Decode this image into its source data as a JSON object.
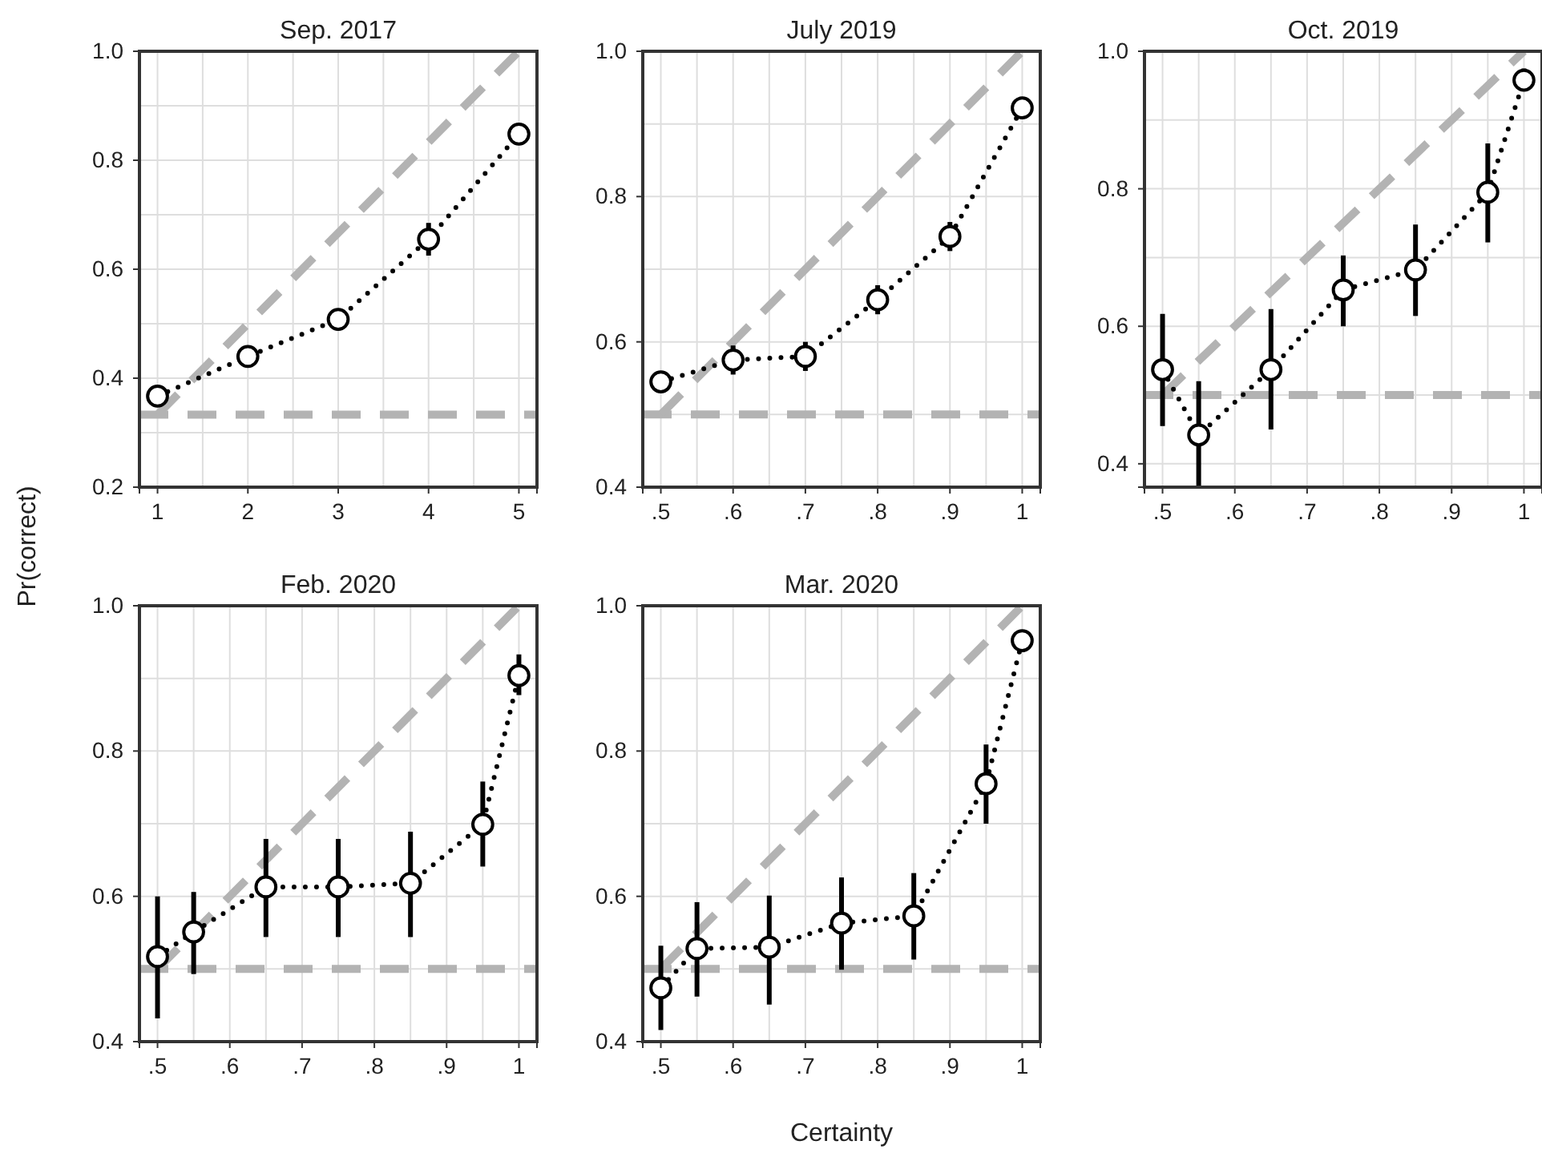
{
  "chart_data": [
    {
      "type": "line",
      "title": "Sep. 2017",
      "ylabel": "Pr(correct)",
      "xlim": [
        0.8,
        5.2
      ],
      "xticks": [
        1,
        2,
        3,
        4,
        5
      ],
      "ylim": [
        0.2,
        1.0
      ],
      "yticks": [
        {
          "value": 0.2,
          "label": "0.2"
        },
        {
          "value": 0.4,
          "label": "0.4"
        },
        {
          "value": 0.6,
          "label": "0.6"
        },
        {
          "value": 0.8,
          "label": "0.8"
        },
        {
          "value": 1,
          "label": "1.0"
        }
      ],
      "grid": true,
      "series": [
        {
          "type": "line",
          "color": "#b3b3b3",
          "line_style": "dashed",
          "marker": "none",
          "x": [
            1,
            5
          ],
          "values": [
            0.333,
            1
          ]
        },
        {
          "type": "line",
          "color": "#000000",
          "line_style": "dotted",
          "marker": "circle",
          "x": [
            1,
            2,
            3,
            4,
            5
          ],
          "values": [
            0.367,
            0.44,
            0.508,
            0.655,
            0.848
          ],
          "errors": [
            0.02,
            0.02,
            0.02,
            0.03,
            0.02
          ]
        }
      ],
      "ref_lines": [
        {
          "axis": "y",
          "value": 0.333,
          "color": "#b3b3b3",
          "line_style": "dashed"
        }
      ]
    },
    {
      "type": "line",
      "title": "July 2019",
      "xlim": [
        0.475,
        1.025
      ],
      "xticks": [
        {
          "value": 0.5,
          "label": ".5"
        },
        {
          "value": 0.6,
          "label": ".6"
        },
        {
          "value": 0.7,
          "label": ".7"
        },
        {
          "value": 0.8,
          "label": ".8"
        },
        {
          "value": 0.9,
          "label": ".9"
        },
        {
          "value": 1,
          "label": "1"
        }
      ],
      "ylim": [
        0.4,
        1.0
      ],
      "yticks": [
        {
          "value": 0.4,
          "label": "0.4"
        },
        {
          "value": 0.6,
          "label": "0.6"
        },
        {
          "value": 0.8,
          "label": "0.8"
        },
        {
          "value": 1,
          "label": "1.0"
        }
      ],
      "grid": true,
      "series": [
        {
          "type": "line",
          "color": "#b3b3b3",
          "line_style": "dashed",
          "marker": "none",
          "x": [
            0.5,
            1
          ],
          "values": [
            0.5,
            1
          ]
        },
        {
          "type": "line",
          "color": "#000000",
          "line_style": "dotted",
          "marker": "circle",
          "x": [
            0.5,
            0.6,
            0.7,
            0.8,
            0.9,
            1
          ],
          "values": [
            0.545,
            0.575,
            0.58,
            0.658,
            0.745,
            0.922
          ],
          "errors": [
            0.015,
            0.02,
            0.02,
            0.02,
            0.02,
            0.01
          ]
        }
      ],
      "ref_lines": [
        {
          "axis": "y",
          "value": 0.5,
          "color": "#b3b3b3",
          "line_style": "dashed"
        }
      ]
    },
    {
      "type": "line",
      "title": "Oct. 2019",
      "xlim": [
        0.475,
        1.025
      ],
      "xticks": [
        {
          "value": 0.5,
          "label": ".5"
        },
        {
          "value": 0.6,
          "label": ".6"
        },
        {
          "value": 0.7,
          "label": ".7"
        },
        {
          "value": 0.8,
          "label": ".8"
        },
        {
          "value": 0.9,
          "label": ".9"
        },
        {
          "value": 1,
          "label": "1"
        }
      ],
      "ylim": [
        0.366,
        1.0
      ],
      "yticks": [
        {
          "value": 0.4,
          "label": "0.4"
        },
        {
          "value": 0.6,
          "label": "0.6"
        },
        {
          "value": 0.8,
          "label": "0.8"
        },
        {
          "value": 1,
          "label": "1.0"
        }
      ],
      "grid": true,
      "series": [
        {
          "type": "line",
          "color": "#b3b3b3",
          "line_style": "dashed",
          "marker": "none",
          "x": [
            0.5,
            1
          ],
          "values": [
            0.5,
            1
          ]
        },
        {
          "type": "line",
          "color": "#000000",
          "line_style": "dotted",
          "marker": "circle",
          "x": [
            0.5,
            0.55,
            0.65,
            0.75,
            0.85,
            0.95,
            1
          ],
          "values": [
            0.537,
            0.442,
            0.537,
            0.653,
            0.682,
            0.795,
            0.958
          ],
          "errors": [
            [
              0.455,
              0.618
            ],
            [
              0.366,
              0.52
            ],
            [
              0.45,
              0.625
            ],
            [
              0.6,
              0.703
            ],
            [
              0.615,
              0.748
            ],
            [
              0.722,
              0.866
            ],
            [
              0.945,
              0.975
            ]
          ]
        }
      ],
      "ref_lines": [
        {
          "axis": "y",
          "value": 0.5,
          "color": "#b3b3b3",
          "line_style": "dashed"
        }
      ]
    },
    {
      "type": "line",
      "title": "Feb. 2020",
      "xlim": [
        0.475,
        1.025
      ],
      "xticks": [
        {
          "value": 0.5,
          "label": ".5"
        },
        {
          "value": 0.6,
          "label": ".6"
        },
        {
          "value": 0.7,
          "label": ".7"
        },
        {
          "value": 0.8,
          "label": ".8"
        },
        {
          "value": 0.9,
          "label": ".9"
        },
        {
          "value": 1,
          "label": "1"
        }
      ],
      "ylim": [
        0.4,
        1.0
      ],
      "yticks": [
        {
          "value": 0.4,
          "label": "0.4"
        },
        {
          "value": 0.6,
          "label": "0.6"
        },
        {
          "value": 0.8,
          "label": "0.8"
        },
        {
          "value": 1,
          "label": "1.0"
        }
      ],
      "grid": true,
      "series": [
        {
          "type": "line",
          "color": "#b3b3b3",
          "line_style": "dashed",
          "marker": "none",
          "x": [
            0.5,
            1
          ],
          "values": [
            0.5,
            1
          ]
        },
        {
          "type": "line",
          "color": "#000000",
          "line_style": "dotted",
          "marker": "circle",
          "x": [
            0.5,
            0.55,
            0.65,
            0.75,
            0.85,
            0.95,
            1
          ],
          "values": [
            0.517,
            0.551,
            0.613,
            0.613,
            0.618,
            0.699,
            0.904
          ],
          "errors": [
            [
              0.432,
              0.6
            ],
            [
              0.493,
              0.606
            ],
            [
              0.544,
              0.679
            ],
            [
              0.544,
              0.679
            ],
            [
              0.544,
              0.689
            ],
            [
              0.641,
              0.758
            ],
            [
              0.877,
              0.933
            ]
          ]
        }
      ],
      "ref_lines": [
        {
          "axis": "y",
          "value": 0.5,
          "color": "#b3b3b3",
          "line_style": "dashed"
        }
      ]
    },
    {
      "type": "line",
      "title": "Mar. 2020",
      "xlabel": "Certainty",
      "xlim": [
        0.475,
        1.025
      ],
      "xticks": [
        {
          "value": 0.5,
          "label": ".5"
        },
        {
          "value": 0.6,
          "label": ".6"
        },
        {
          "value": 0.7,
          "label": ".7"
        },
        {
          "value": 0.8,
          "label": ".8"
        },
        {
          "value": 0.9,
          "label": ".9"
        },
        {
          "value": 1,
          "label": "1"
        }
      ],
      "ylim": [
        0.4,
        1.0
      ],
      "yticks": [
        {
          "value": 0.4,
          "label": "0.4"
        },
        {
          "value": 0.6,
          "label": "0.6"
        },
        {
          "value": 0.8,
          "label": "0.8"
        },
        {
          "value": 1,
          "label": "1.0"
        }
      ],
      "grid": true,
      "series": [
        {
          "type": "line",
          "color": "#b3b3b3",
          "line_style": "dashed",
          "marker": "none",
          "x": [
            0.5,
            1
          ],
          "values": [
            0.5,
            1
          ]
        },
        {
          "type": "line",
          "color": "#000000",
          "line_style": "dotted",
          "marker": "circle",
          "x": [
            0.5,
            0.55,
            0.65,
            0.75,
            0.85,
            0.95,
            1
          ],
          "values": [
            0.474,
            0.528,
            0.53,
            0.563,
            0.573,
            0.755,
            0.952
          ],
          "errors": [
            [
              0.416,
              0.532
            ],
            [
              0.462,
              0.592
            ],
            [
              0.451,
              0.601
            ],
            [
              0.499,
              0.626
            ],
            [
              0.513,
              0.632
            ],
            [
              0.7,
              0.809
            ],
            [
              0.936,
              0.965
            ]
          ]
        }
      ],
      "ref_lines": [
        {
          "axis": "y",
          "value": 0.5,
          "color": "#b3b3b3",
          "line_style": "dashed"
        }
      ]
    }
  ]
}
